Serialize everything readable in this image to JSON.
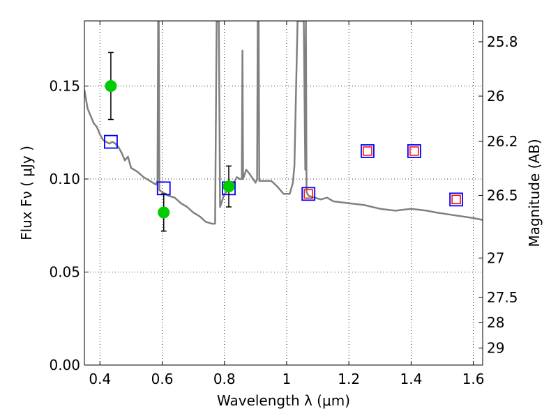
{
  "chart_data": {
    "type": "scatter",
    "xlabel": "Wavelength  λ (μm)",
    "ylabel": "Flux  Fν  ( μJy )",
    "ylabel_right": "Magnitude (AB)",
    "xlim": [
      0.35,
      1.63
    ],
    "ylim": [
      0.0,
      0.185
    ],
    "x_ticks": [
      {
        "value": 0.4,
        "label": "0.4"
      },
      {
        "value": 0.6,
        "label": "0.6"
      },
      {
        "value": 0.8,
        "label": "0.8"
      },
      {
        "value": 1.0,
        "label": "1"
      },
      {
        "value": 1.2,
        "label": "1.2"
      },
      {
        "value": 1.4,
        "label": "1.4"
      },
      {
        "value": 1.6,
        "label": "1.6"
      }
    ],
    "y_ticks": [
      {
        "value": 0.0,
        "label": "0.00"
      },
      {
        "value": 0.05,
        "label": "0.05"
      },
      {
        "value": 0.1,
        "label": "0.10"
      },
      {
        "value": 0.15,
        "label": "0.15"
      }
    ],
    "right_ticks": [
      {
        "mag": 25.8,
        "label": "25.8"
      },
      {
        "mag": 26,
        "label": "26"
      },
      {
        "mag": 26.2,
        "label": "26.2"
      },
      {
        "mag": 26.5,
        "label": "26.5"
      },
      {
        "mag": 27,
        "label": "27"
      },
      {
        "mag": 27.5,
        "label": "27.5"
      },
      {
        "mag": 28,
        "label": "28"
      },
      {
        "mag": 29,
        "label": "29"
      }
    ],
    "grid": true,
    "colors": {
      "model": "#808080",
      "observed": "#00cc00",
      "errorbar": "#000000",
      "model_phot": "#0000ff",
      "predicted": "#ff0000"
    },
    "series": [
      {
        "kind": "line",
        "points": [
          [
            0.35,
            0.148
          ],
          [
            0.36,
            0.138
          ],
          [
            0.37,
            0.134
          ],
          [
            0.38,
            0.13
          ],
          [
            0.39,
            0.128
          ],
          [
            0.4,
            0.124
          ],
          [
            0.41,
            0.121
          ],
          [
            0.42,
            0.12
          ],
          [
            0.43,
            0.119
          ],
          [
            0.44,
            0.12
          ],
          [
            0.45,
            0.119
          ],
          [
            0.46,
            0.117
          ],
          [
            0.47,
            0.114
          ],
          [
            0.48,
            0.11
          ],
          [
            0.49,
            0.112
          ],
          [
            0.5,
            0.106
          ],
          [
            0.52,
            0.104
          ],
          [
            0.54,
            0.101
          ],
          [
            0.56,
            0.099
          ],
          [
            0.58,
            0.097
          ],
          [
            0.585,
            0.099
          ],
          [
            0.587,
            0.185
          ],
          [
            0.589,
            0.185
          ],
          [
            0.591,
            0.094
          ],
          [
            0.6,
            0.093
          ],
          [
            0.62,
            0.091
          ],
          [
            0.64,
            0.09
          ],
          [
            0.66,
            0.087
          ],
          [
            0.68,
            0.085
          ],
          [
            0.7,
            0.082
          ],
          [
            0.72,
            0.08
          ],
          [
            0.74,
            0.077
          ],
          [
            0.76,
            0.076
          ],
          [
            0.77,
            0.076
          ],
          [
            0.775,
            0.185
          ],
          [
            0.782,
            0.185
          ],
          [
            0.786,
            0.085
          ],
          [
            0.8,
            0.092
          ],
          [
            0.82,
            0.095
          ],
          [
            0.84,
            0.101
          ],
          [
            0.85,
            0.1
          ],
          [
            0.856,
            0.1
          ],
          [
            0.858,
            0.169
          ],
          [
            0.86,
            0.1
          ],
          [
            0.87,
            0.105
          ],
          [
            0.88,
            0.103
          ],
          [
            0.9,
            0.098
          ],
          [
            0.905,
            0.1
          ],
          [
            0.907,
            0.185
          ],
          [
            0.91,
            0.185
          ],
          [
            0.912,
            0.099
          ],
          [
            0.93,
            0.099
          ],
          [
            0.95,
            0.099
          ],
          [
            0.97,
            0.096
          ],
          [
            0.99,
            0.092
          ],
          [
            1.01,
            0.092
          ],
          [
            1.02,
            0.098
          ],
          [
            1.025,
            0.107
          ],
          [
            1.035,
            0.185
          ],
          [
            1.055,
            0.185
          ],
          [
            1.06,
            0.105
          ],
          [
            1.062,
            0.185
          ],
          [
            1.064,
            0.093
          ],
          [
            1.07,
            0.091
          ],
          [
            1.09,
            0.09
          ],
          [
            1.11,
            0.089
          ],
          [
            1.13,
            0.09
          ],
          [
            1.15,
            0.088
          ],
          [
            1.2,
            0.087
          ],
          [
            1.25,
            0.086
          ],
          [
            1.3,
            0.084
          ],
          [
            1.35,
            0.083
          ],
          [
            1.4,
            0.084
          ],
          [
            1.45,
            0.083
          ],
          [
            1.48,
            0.082
          ],
          [
            1.52,
            0.081
          ],
          [
            1.56,
            0.08
          ],
          [
            1.6,
            0.079
          ],
          [
            1.63,
            0.078
          ]
        ]
      },
      {
        "kind": "errorbar-points",
        "points": [
          {
            "x": 0.435,
            "y": 0.15,
            "yerr": 0.018
          },
          {
            "x": 0.605,
            "y": 0.082,
            "yerr": 0.01
          },
          {
            "x": 0.814,
            "y": 0.096,
            "yerr": 0.011
          }
        ]
      },
      {
        "kind": "open-squares",
        "points": [
          [
            0.435,
            0.12
          ],
          [
            0.605,
            0.095
          ],
          [
            0.814,
            0.095
          ],
          [
            1.07,
            0.092
          ],
          [
            1.26,
            0.115
          ],
          [
            1.41,
            0.115
          ],
          [
            1.545,
            0.089
          ]
        ]
      },
      {
        "kind": "open-squares",
        "points": [
          [
            1.07,
            0.092
          ],
          [
            1.26,
            0.115
          ],
          [
            1.41,
            0.115
          ],
          [
            1.545,
            0.089
          ]
        ]
      }
    ]
  }
}
